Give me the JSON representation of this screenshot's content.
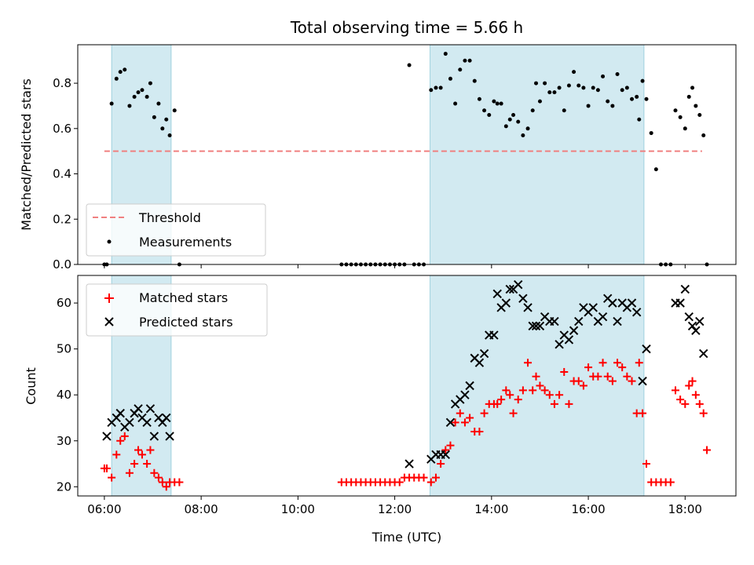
{
  "colors": {
    "span": "#add8e6",
    "threshold": "#f08080",
    "measurement": "#000000",
    "matched": "#ff0000",
    "predicted": "#000000"
  },
  "chart_data": [
    {
      "type": "scatter",
      "title": "Total observing time = 5.66 h",
      "xlabel": "",
      "ylabel": "Matched/Predicted stars",
      "xlim": [
        5.45,
        19.05
      ],
      "ylim": [
        0,
        0.97
      ],
      "yticks": [
        0.0,
        0.2,
        0.4,
        0.6,
        0.8
      ],
      "ytick_labels": [
        "0.0",
        "0.2",
        "0.4",
        "0.6",
        "0.8"
      ],
      "spans": [
        [
          6.15,
          7.38
        ],
        [
          12.73,
          17.15
        ]
      ],
      "threshold": {
        "name": "Threshold",
        "value": 0.5,
        "x_range": [
          6.0,
          18.35
        ]
      },
      "legend": {
        "placement": "lower-left",
        "entries": [
          "Threshold",
          "Measurements"
        ]
      },
      "series": [
        {
          "name": "Measurements",
          "x": [
            6.0,
            6.05,
            6.15,
            6.25,
            6.33,
            6.42,
            6.52,
            6.62,
            6.7,
            6.78,
            6.88,
            6.95,
            7.03,
            7.12,
            7.2,
            7.28,
            7.35,
            7.45,
            7.55,
            10.9,
            11.0,
            11.1,
            11.2,
            11.3,
            11.4,
            11.5,
            11.6,
            11.7,
            11.8,
            11.9,
            12.0,
            12.1,
            12.2,
            12.3,
            12.4,
            12.5,
            12.6,
            12.75,
            12.85,
            12.95,
            13.05,
            13.15,
            13.25,
            13.35,
            13.45,
            13.55,
            13.65,
            13.75,
            13.85,
            13.95,
            14.05,
            14.12,
            14.2,
            14.3,
            14.38,
            14.45,
            14.55,
            14.65,
            14.75,
            14.85,
            14.92,
            15.0,
            15.1,
            15.2,
            15.3,
            15.4,
            15.5,
            15.6,
            15.7,
            15.8,
            15.9,
            16.0,
            16.1,
            16.2,
            16.3,
            16.4,
            16.5,
            16.6,
            16.7,
            16.8,
            16.9,
            17.0,
            17.05,
            17.12,
            17.2,
            17.3,
            17.4,
            17.5,
            17.6,
            17.7,
            17.8,
            17.9,
            18.0,
            18.08,
            18.15,
            18.22,
            18.3,
            18.38,
            18.45
          ],
          "y": [
            0.0,
            0.0,
            0.71,
            0.82,
            0.85,
            0.86,
            0.7,
            0.74,
            0.76,
            0.77,
            0.74,
            0.8,
            0.65,
            0.71,
            0.6,
            0.64,
            0.57,
            0.68,
            0.0,
            0.0,
            0.0,
            0.0,
            0.0,
            0.0,
            0.0,
            0.0,
            0.0,
            0.0,
            0.0,
            0.0,
            0.0,
            0.0,
            0.0,
            0.88,
            0.0,
            0.0,
            0.0,
            0.77,
            0.78,
            0.78,
            0.93,
            0.82,
            0.71,
            0.86,
            0.9,
            0.9,
            0.81,
            0.73,
            0.68,
            0.66,
            0.72,
            0.71,
            0.71,
            0.61,
            0.64,
            0.66,
            0.63,
            0.57,
            0.6,
            0.68,
            0.8,
            0.72,
            0.8,
            0.76,
            0.76,
            0.78,
            0.68,
            0.79,
            0.85,
            0.79,
            0.78,
            0.7,
            0.78,
            0.77,
            0.83,
            0.72,
            0.7,
            0.84,
            0.77,
            0.78,
            0.73,
            0.74,
            0.64,
            0.81,
            0.73,
            0.58,
            0.42,
            0.0,
            0.0,
            0.0,
            0.68,
            0.65,
            0.6,
            0.74,
            0.78,
            0.7,
            0.66,
            0.57,
            0.0
          ]
        }
      ]
    },
    {
      "type": "scatter",
      "title": "",
      "xlabel": "Time (UTC)",
      "ylabel": "Count",
      "xlim": [
        5.45,
        19.05
      ],
      "ylim": [
        18,
        66
      ],
      "yticks": [
        20,
        30,
        40,
        50,
        60
      ],
      "ytick_labels": [
        "20",
        "30",
        "40",
        "50",
        "60"
      ],
      "xticks": [
        6,
        8,
        10,
        12,
        14,
        16,
        18
      ],
      "xtick_labels": [
        "06:00",
        "08:00",
        "10:00",
        "12:00",
        "14:00",
        "16:00",
        "18:00"
      ],
      "spans": [
        [
          6.15,
          7.38
        ],
        [
          12.73,
          17.15
        ]
      ],
      "legend": {
        "placement": "upper-left",
        "entries": [
          "Matched stars",
          "Predicted stars"
        ]
      },
      "series": [
        {
          "name": "Matched stars",
          "x": [
            6.0,
            6.05,
            6.15,
            6.25,
            6.33,
            6.42,
            6.52,
            6.62,
            6.7,
            6.78,
            6.88,
            6.95,
            7.03,
            7.12,
            7.2,
            7.28,
            7.35,
            7.45,
            7.55,
            10.9,
            11.0,
            11.1,
            11.2,
            11.3,
            11.4,
            11.5,
            11.6,
            11.7,
            11.8,
            11.9,
            12.0,
            12.1,
            12.2,
            12.3,
            12.4,
            12.5,
            12.6,
            12.75,
            12.85,
            12.95,
            13.05,
            13.15,
            13.25,
            13.35,
            13.45,
            13.55,
            13.65,
            13.75,
            13.85,
            13.95,
            14.05,
            14.12,
            14.2,
            14.3,
            14.38,
            14.45,
            14.55,
            14.65,
            14.75,
            14.85,
            14.92,
            15.0,
            15.1,
            15.2,
            15.3,
            15.4,
            15.5,
            15.6,
            15.7,
            15.8,
            15.9,
            16.0,
            16.1,
            16.2,
            16.3,
            16.4,
            16.5,
            16.6,
            16.7,
            16.8,
            16.9,
            17.0,
            17.05,
            17.12,
            17.2,
            17.3,
            17.4,
            17.5,
            17.6,
            17.7,
            17.8,
            17.9,
            18.0,
            18.08,
            18.15,
            18.22,
            18.3,
            18.38,
            18.45
          ],
          "y": [
            24,
            24,
            22,
            27,
            30,
            31,
            23,
            25,
            28,
            27,
            25,
            28,
            23,
            22,
            21,
            20,
            21,
            21,
            21,
            21,
            21,
            21,
            21,
            21,
            21,
            21,
            21,
            21,
            21,
            21,
            21,
            21,
            22,
            22,
            22,
            22,
            22,
            21,
            22,
            25,
            28,
            29,
            34,
            36,
            34,
            35,
            32,
            32,
            36,
            38,
            38,
            38,
            39,
            41,
            40,
            36,
            39,
            41,
            47,
            41,
            44,
            42,
            41,
            40,
            38,
            40,
            45,
            38,
            43,
            43,
            42,
            46,
            44,
            44,
            47,
            44,
            43,
            47,
            46,
            44,
            43,
            36,
            47,
            36,
            25,
            21,
            21,
            21,
            21,
            21,
            41,
            39,
            38,
            42,
            43,
            40,
            38,
            36,
            28
          ]
        },
        {
          "name": "Predicted stars",
          "x": [
            6.05,
            6.15,
            6.25,
            6.33,
            6.42,
            6.52,
            6.62,
            6.7,
            6.78,
            6.88,
            6.95,
            7.03,
            7.12,
            7.2,
            7.28,
            7.35,
            12.3,
            12.75,
            12.85,
            12.95,
            13.05,
            13.15,
            13.25,
            13.35,
            13.45,
            13.55,
            13.65,
            13.75,
            13.85,
            13.95,
            14.05,
            14.12,
            14.2,
            14.3,
            14.38,
            14.45,
            14.55,
            14.65,
            14.75,
            14.85,
            14.92,
            15.0,
            15.1,
            15.2,
            15.3,
            15.4,
            15.5,
            15.6,
            15.7,
            15.8,
            15.9,
            16.0,
            16.1,
            16.2,
            16.3,
            16.4,
            16.5,
            16.6,
            16.7,
            16.8,
            16.9,
            17.0,
            17.12,
            17.2,
            17.8,
            17.9,
            18.0,
            18.08,
            18.15,
            18.22,
            18.3,
            18.38
          ],
          "y": [
            31,
            34,
            35,
            36,
            33,
            34,
            36,
            37,
            35,
            34,
            37,
            31,
            35,
            34,
            35,
            31,
            25,
            26,
            27,
            27,
            27,
            34,
            38,
            39,
            40,
            42,
            48,
            47,
            49,
            53,
            53,
            62,
            59,
            60,
            63,
            63,
            64,
            61,
            59,
            55,
            55,
            55,
            57,
            56,
            56,
            51,
            53,
            52,
            54,
            56,
            59,
            58,
            59,
            56,
            57,
            61,
            60,
            56,
            60,
            59,
            60,
            58,
            43,
            50,
            60,
            60,
            63,
            57,
            55,
            54,
            56,
            49
          ]
        }
      ]
    }
  ]
}
